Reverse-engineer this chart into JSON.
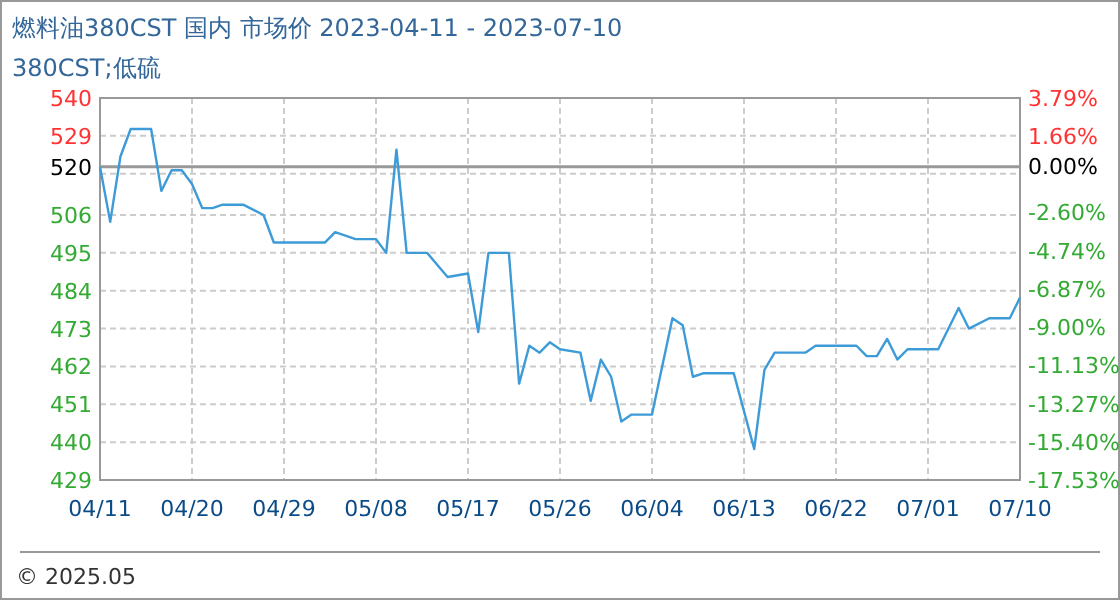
{
  "chart_data": {
    "type": "line",
    "title": "燃料油380CST 国内 市场价  2023-04-11 - 2023-07-10",
    "subtitle": "380CST;低硫",
    "annotations": [
      "© 2025.05"
    ],
    "x": [
      "2023-04-11",
      "2023-04-12",
      "2023-04-13",
      "2023-04-14",
      "2023-04-16",
      "2023-04-17",
      "2023-04-18",
      "2023-04-19",
      "2023-04-20",
      "2023-04-21",
      "2023-04-22",
      "2023-04-23",
      "2023-04-25",
      "2023-04-27",
      "2023-04-28",
      "2023-05-03",
      "2023-05-04",
      "2023-05-06",
      "2023-05-08",
      "2023-05-09",
      "2023-05-10",
      "2023-05-11",
      "2023-05-13",
      "2023-05-15",
      "2023-05-17",
      "2023-05-18",
      "2023-05-19",
      "2023-05-21",
      "2023-05-22",
      "2023-05-23",
      "2023-05-24",
      "2023-05-25",
      "2023-05-26",
      "2023-05-28",
      "2023-05-29",
      "2023-05-30",
      "2023-05-31",
      "2023-06-01",
      "2023-06-02",
      "2023-06-04",
      "2023-06-06",
      "2023-06-07",
      "2023-06-08",
      "2023-06-09",
      "2023-06-12",
      "2023-06-14",
      "2023-06-15",
      "2023-06-16",
      "2023-06-19",
      "2023-06-20",
      "2023-06-24",
      "2023-06-25",
      "2023-06-26",
      "2023-06-27",
      "2023-06-28",
      "2023-06-29",
      "2023-07-02",
      "2023-07-04",
      "2023-07-05",
      "2023-07-07",
      "2023-07-09",
      "2023-07-10"
    ],
    "series": [
      {
        "color": "#3d9bd8",
        "values": [
          520,
          504,
          523,
          531,
          531,
          513,
          519,
          519,
          515,
          508,
          508,
          509,
          509,
          506,
          498,
          498,
          501,
          499,
          499,
          495,
          525,
          495,
          495,
          488,
          489,
          472,
          495,
          495,
          457,
          468,
          466,
          469,
          467,
          466,
          452,
          464,
          459,
          446,
          448,
          448,
          476,
          474,
          459,
          460,
          460,
          438,
          461,
          466,
          466,
          468,
          468,
          465,
          465,
          470,
          464,
          467,
          467,
          479,
          473,
          476,
          476,
          482
        ]
      }
    ],
    "xlim": [
      "2023-04-11",
      "2023-07-10"
    ],
    "xticks": [
      {
        "value": "2023-04-11",
        "label": "04/11"
      },
      {
        "value": "2023-04-20",
        "label": "04/20"
      },
      {
        "value": "2023-04-29",
        "label": "04/29"
      },
      {
        "value": "2023-05-08",
        "label": "05/08"
      },
      {
        "value": "2023-05-17",
        "label": "05/17"
      },
      {
        "value": "2023-05-26",
        "label": "05/26"
      },
      {
        "value": "2023-06-04",
        "label": "06/04"
      },
      {
        "value": "2023-06-13",
        "label": "06/13"
      },
      {
        "value": "2023-06-22",
        "label": "06/22"
      },
      {
        "value": "2023-07-01",
        "label": "07/01"
      },
      {
        "value": "2023-07-10",
        "label": "07/10"
      }
    ],
    "ylim": [
      429,
      540
    ],
    "yticks": [
      540,
      529,
      520,
      {
        "value": 518,
        "label": null
      },
      506,
      495,
      484,
      473,
      462,
      451,
      440,
      429
    ],
    "y2lim": [
      -17.53,
      3.79
    ],
    "y2ticks": [
      {
        "value": 3.79,
        "label": "3.79%"
      },
      {
        "value": 1.66,
        "label": "1.66%"
      },
      {
        "value": 0,
        "label": "0.00%"
      },
      {
        "value": -2.6,
        "label": "-2.60%"
      },
      {
        "value": -4.74,
        "label": "-4.74%"
      },
      {
        "value": -6.87,
        "label": "-6.87%"
      },
      {
        "value": -9.0,
        "label": "-9.00%"
      },
      {
        "value": -11.13,
        "label": "-11.13%"
      },
      {
        "value": -13.27,
        "label": "-13.27%"
      },
      {
        "value": -15.4,
        "label": "-15.40%"
      },
      {
        "value": -17.53,
        "label": "-17.53%"
      }
    ],
    "ref_lines": [
      {
        "axis": "y",
        "value": 520,
        "color": "#999999"
      }
    ],
    "grid": true
  }
}
